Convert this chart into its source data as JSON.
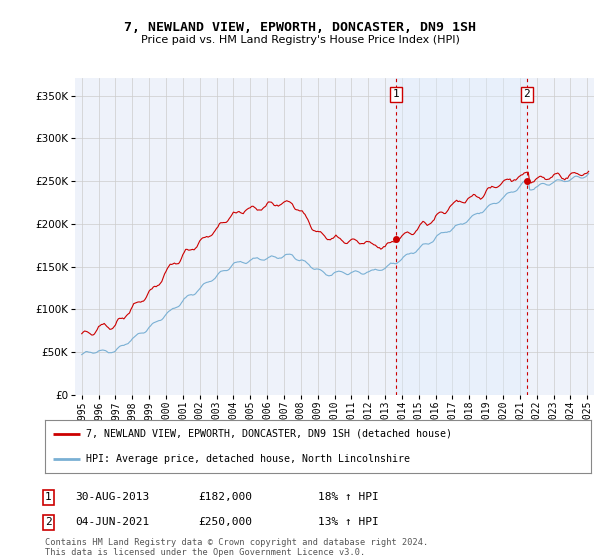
{
  "title": "7, NEWLAND VIEW, EPWORTH, DONCASTER, DN9 1SH",
  "subtitle": "Price paid vs. HM Land Registry's House Price Index (HPI)",
  "legend_line1": "7, NEWLAND VIEW, EPWORTH, DONCASTER, DN9 1SH (detached house)",
  "legend_line2": "HPI: Average price, detached house, North Lincolnshire",
  "footnote": "Contains HM Land Registry data © Crown copyright and database right 2024.\nThis data is licensed under the Open Government Licence v3.0.",
  "point1_label": "1",
  "point1_date": "30-AUG-2013",
  "point1_price": "£182,000",
  "point1_hpi": "18% ↑ HPI",
  "point2_label": "2",
  "point2_date": "04-JUN-2021",
  "point2_price": "£250,000",
  "point2_hpi": "13% ↑ HPI",
  "ylim": [
    0,
    370000
  ],
  "yticks": [
    0,
    50000,
    100000,
    150000,
    200000,
    250000,
    300000,
    350000
  ],
  "sale_color": "#cc0000",
  "hpi_color": "#7ab0d4",
  "vline_color": "#cc0000",
  "shade_color": "#ddeeff",
  "background_color": "#ffffff",
  "plot_bg_color": "#eef2fa",
  "grid_color": "#cccccc",
  "sale_x_1": 2013.664,
  "sale_y_1": 182000,
  "sale_x_2": 2021.42,
  "sale_y_2": 250000,
  "xlim_start": 1994.6,
  "xlim_end": 2025.4
}
